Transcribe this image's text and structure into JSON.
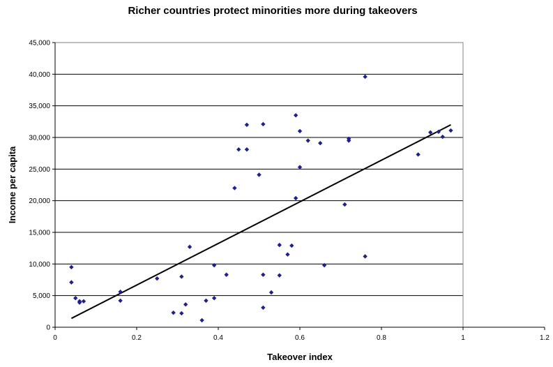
{
  "chart_data": {
    "type": "scatter",
    "title": "Richer countries protect minorities more during takeovers",
    "xlabel": "Takeover index",
    "ylabel": "Income per capita",
    "xlim": [
      0,
      1.2
    ],
    "ylim": [
      0,
      45000
    ],
    "x_ticks": [
      0,
      0.2,
      0.4,
      0.6,
      0.8,
      1,
      1.2
    ],
    "x_tick_labels": [
      "0",
      "0.2",
      "0.4",
      "0.6",
      "0.8",
      "1",
      "1.2"
    ],
    "y_ticks": [
      0,
      5000,
      10000,
      15000,
      20000,
      25000,
      30000,
      35000,
      40000,
      45000
    ],
    "y_tick_labels": [
      "0",
      "5,000",
      "10,000",
      "15,000",
      "20,000",
      "25,000",
      "30,000",
      "35,000",
      "40,000",
      "45,000"
    ],
    "grid": "horizontal",
    "marker_color": "#1F1F8F",
    "points": [
      {
        "x": 0.04,
        "y": 9500
      },
      {
        "x": 0.04,
        "y": 7100
      },
      {
        "x": 0.05,
        "y": 4600
      },
      {
        "x": 0.06,
        "y": 4100
      },
      {
        "x": 0.06,
        "y": 3900
      },
      {
        "x": 0.07,
        "y": 4100
      },
      {
        "x": 0.16,
        "y": 5600
      },
      {
        "x": 0.16,
        "y": 4200
      },
      {
        "x": 0.25,
        "y": 7700
      },
      {
        "x": 0.29,
        "y": 2300
      },
      {
        "x": 0.31,
        "y": 2200
      },
      {
        "x": 0.31,
        "y": 8000
      },
      {
        "x": 0.32,
        "y": 3600
      },
      {
        "x": 0.33,
        "y": 12700
      },
      {
        "x": 0.36,
        "y": 1100
      },
      {
        "x": 0.37,
        "y": 4200
      },
      {
        "x": 0.39,
        "y": 9800
      },
      {
        "x": 0.39,
        "y": 4600
      },
      {
        "x": 0.42,
        "y": 8300
      },
      {
        "x": 0.44,
        "y": 22000
      },
      {
        "x": 0.45,
        "y": 28100
      },
      {
        "x": 0.47,
        "y": 28100
      },
      {
        "x": 0.47,
        "y": 32000
      },
      {
        "x": 0.5,
        "y": 24100
      },
      {
        "x": 0.51,
        "y": 32100
      },
      {
        "x": 0.51,
        "y": 8300
      },
      {
        "x": 0.51,
        "y": 3100
      },
      {
        "x": 0.53,
        "y": 5500
      },
      {
        "x": 0.55,
        "y": 13000
      },
      {
        "x": 0.55,
        "y": 8200
      },
      {
        "x": 0.57,
        "y": 11500
      },
      {
        "x": 0.58,
        "y": 12900
      },
      {
        "x": 0.59,
        "y": 33500
      },
      {
        "x": 0.59,
        "y": 20400
      },
      {
        "x": 0.6,
        "y": 31000
      },
      {
        "x": 0.6,
        "y": 25300
      },
      {
        "x": 0.62,
        "y": 29500
      },
      {
        "x": 0.65,
        "y": 29100
      },
      {
        "x": 0.66,
        "y": 9800
      },
      {
        "x": 0.71,
        "y": 19400
      },
      {
        "x": 0.72,
        "y": 29800
      },
      {
        "x": 0.72,
        "y": 29500
      },
      {
        "x": 0.76,
        "y": 39600
      },
      {
        "x": 0.76,
        "y": 11200
      },
      {
        "x": 0.89,
        "y": 27300
      },
      {
        "x": 0.92,
        "y": 30800
      },
      {
        "x": 0.94,
        "y": 30900
      },
      {
        "x": 0.95,
        "y": 30100
      },
      {
        "x": 0.97,
        "y": 31100
      }
    ],
    "trendline": {
      "x": [
        0.04,
        0.97
      ],
      "y": [
        1400,
        32000
      ]
    }
  }
}
